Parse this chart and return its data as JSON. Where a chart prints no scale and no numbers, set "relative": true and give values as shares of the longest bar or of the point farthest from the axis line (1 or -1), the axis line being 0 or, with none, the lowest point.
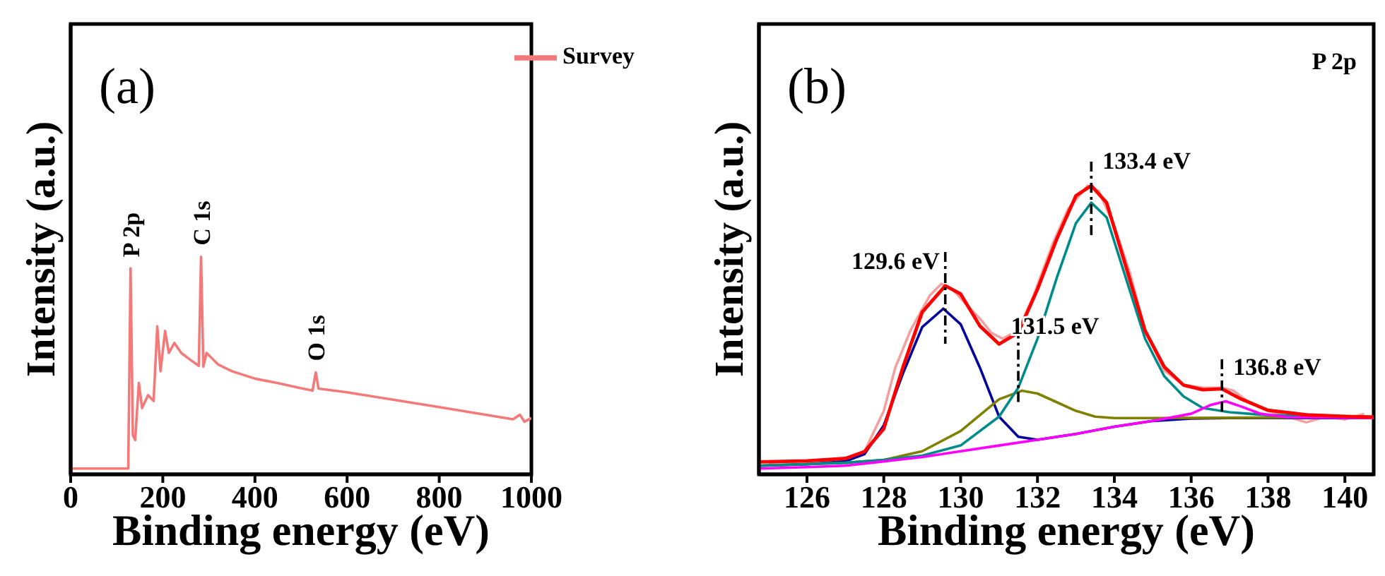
{
  "chart_data": [
    {
      "type": "line",
      "relative": true,
      "xlabel": "Binding energy (eV)",
      "ylabel": "Intensity (a.u.)",
      "xlim": [
        0,
        1000
      ],
      "xticks": [
        0,
        200,
        400,
        600,
        800,
        1000
      ],
      "legend": "top right",
      "marker": "none",
      "annotations": [
        "(a)",
        {
          "text": "P 2p",
          "x": 130,
          "y": 0.947
        },
        {
          "text": "C 1s",
          "x": 283,
          "y": 1
        },
        {
          "text": "O 1s",
          "x": 532,
          "y": 0.469
        }
      ],
      "series": [
        {
          "name": "Survey",
          "color": "#f47a7a",
          "x": [
            0,
            100,
            125,
            130,
            135,
            140,
            148,
            155,
            168,
            180,
            188,
            195,
            205,
            213,
            225,
            240,
            260,
            278,
            283,
            288,
            295,
            320,
            350,
            400,
            450,
            500,
            525,
            532,
            538,
            600,
            700,
            800,
            900,
            960,
            975,
            985,
            1000
          ],
          "values": [
            0.027,
            0.027,
            0.027,
            0.947,
            0.18,
            0.158,
            0.42,
            0.305,
            0.364,
            0.337,
            0.68,
            0.474,
            0.659,
            0.558,
            0.604,
            0.558,
            0.526,
            0.499,
            1,
            0.495,
            0.558,
            0.505,
            0.474,
            0.44,
            0.419,
            0.396,
            0.385,
            0.469,
            0.394,
            0.377,
            0.343,
            0.309,
            0.274,
            0.253,
            0.274,
            0.242,
            0.259
          ]
        }
      ]
    },
    {
      "type": "line",
      "relative": true,
      "xlabel": "Binding energy (eV)",
      "ylabel": "Intensity (a.u.)",
      "xlim": [
        124.75,
        140.75
      ],
      "xticks": [
        126,
        128,
        130,
        132,
        134,
        136,
        138,
        140
      ],
      "marker": "none",
      "annotations": [
        "(b)",
        "P 2p",
        {
          "text": "129.6 eV",
          "x": 129.6,
          "y": 0.653
        },
        {
          "text": "131.5 eV",
          "x": 131.5,
          "y": 0.29
        },
        {
          "text": "133.4 eV",
          "x": 133.4,
          "y": 1
        },
        {
          "text": "136.8 eV",
          "x": 136.8,
          "y": 0.296
        }
      ],
      "series": [
        {
          "color": "#f5a0a0",
          "x": [
            125,
            126,
            127,
            127.5,
            128,
            128.3,
            128.7,
            129.2,
            129.5,
            129.8,
            130.2,
            130.5,
            130.8,
            131.1,
            131.5,
            131.9,
            132.4,
            132.8,
            133.3,
            133.6,
            134,
            134.4,
            134.8,
            135.3,
            135.8,
            136.3,
            136.8,
            137.1,
            137.5,
            138,
            138.5,
            139,
            139.5,
            140,
            140.5
          ],
          "values": [
            0.04,
            0.045,
            0.05,
            0.08,
            0.22,
            0.37,
            0.5,
            0.62,
            0.66,
            0.64,
            0.58,
            0.54,
            0.49,
            0.47,
            0.5,
            0.62,
            0.8,
            0.92,
            1,
            0.98,
            0.86,
            0.7,
            0.5,
            0.36,
            0.31,
            0.3,
            0.3,
            0.29,
            0.25,
            0.22,
            0.2,
            0.18,
            0.2,
            0.19,
            0.21
          ]
        },
        {
          "color": "#00009c",
          "x": [
            124.75,
            126,
            127,
            127.5,
            128,
            128.5,
            129,
            129.55,
            130,
            130.5,
            131,
            131.5,
            132,
            133,
            134,
            135,
            136,
            137,
            138,
            140.75
          ],
          "values": [
            0.03,
            0.035,
            0.045,
            0.07,
            0.17,
            0.35,
            0.51,
            0.574,
            0.52,
            0.37,
            0.2,
            0.13,
            0.12,
            0.14,
            0.165,
            0.185,
            0.193,
            0.195,
            0.195,
            0.195
          ]
        },
        {
          "color": "#808000",
          "x": [
            124.75,
            127,
            128,
            129,
            130,
            131,
            131.6,
            132,
            132.5,
            133,
            133.5,
            134,
            135,
            140.75
          ],
          "values": [
            0.03,
            0.04,
            0.05,
            0.08,
            0.15,
            0.26,
            0.29,
            0.28,
            0.25,
            0.22,
            0.2,
            0.195,
            0.195,
            0.198
          ]
        },
        {
          "color": "#008b8b",
          "x": [
            124.75,
            127,
            128,
            129,
            130,
            131,
            131.5,
            132,
            132.5,
            133,
            133.4,
            133.8,
            134.3,
            134.8,
            135.3,
            135.8,
            136.3,
            137,
            138,
            140.75
          ],
          "values": [
            0.03,
            0.04,
            0.05,
            0.065,
            0.1,
            0.2,
            0.3,
            0.47,
            0.68,
            0.87,
            0.941,
            0.89,
            0.68,
            0.47,
            0.34,
            0.27,
            0.23,
            0.215,
            0.205,
            0.2
          ]
        },
        {
          "color": "#ff00ff",
          "x": [
            124.75,
            126,
            127,
            128,
            129,
            130,
            131,
            132,
            133,
            134,
            135,
            136,
            136.5,
            136.9,
            137.3,
            137.8,
            138.5,
            140.75
          ],
          "values": [
            0.02,
            0.025,
            0.03,
            0.045,
            0.06,
            0.08,
            0.1,
            0.12,
            0.14,
            0.165,
            0.185,
            0.21,
            0.24,
            0.253,
            0.235,
            0.21,
            0.198,
            0.195
          ]
        },
        {
          "color": "#ff0000",
          "x": [
            124.75,
            126,
            127,
            127.5,
            128,
            128.5,
            129,
            129.6,
            130,
            130.5,
            131,
            131.5,
            132,
            132.5,
            133,
            133.4,
            133.8,
            134.3,
            134.8,
            135.3,
            135.8,
            136.3,
            136.8,
            137.3,
            138,
            139,
            140,
            140.75
          ],
          "values": [
            0.043,
            0.047,
            0.055,
            0.079,
            0.158,
            0.372,
            0.562,
            0.653,
            0.625,
            0.514,
            0.451,
            0.491,
            0.641,
            0.815,
            0.965,
            1,
            0.941,
            0.72,
            0.498,
            0.372,
            0.309,
            0.293,
            0.296,
            0.261,
            0.222,
            0.206,
            0.201,
            0.198
          ]
        }
      ]
    }
  ]
}
